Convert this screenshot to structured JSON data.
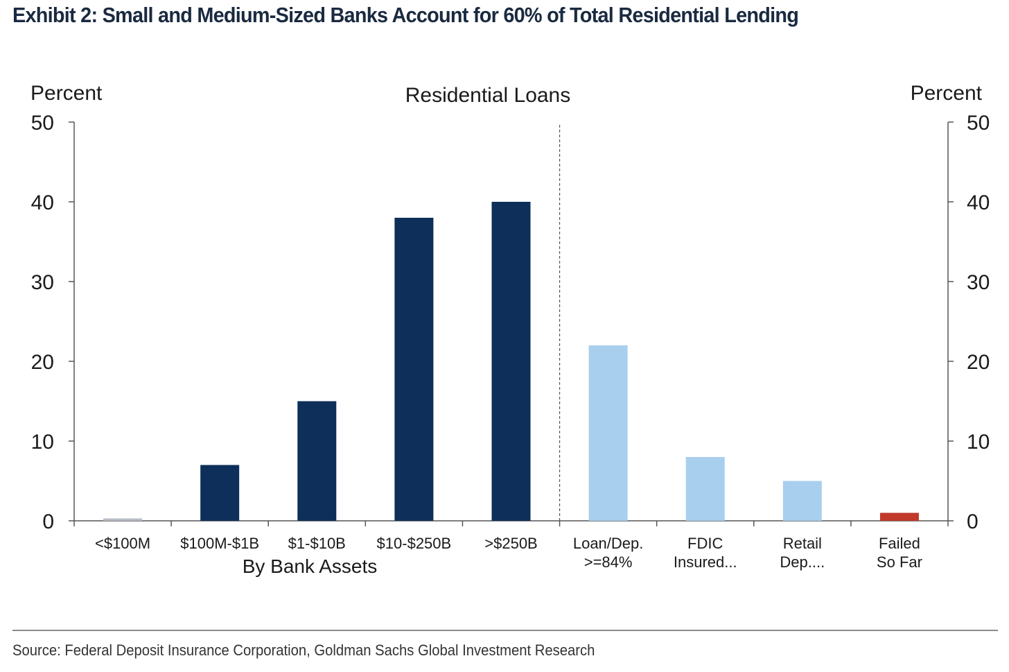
{
  "exhibit_title": "Exhibit 2: Small and Medium-Sized Banks Account for 60% of Total Residential Lending",
  "source": "Source: Federal Deposit Insurance Corporation, Goldman Sachs Global Investment Research",
  "chart_data": {
    "type": "bar",
    "title": "Residential Loans",
    "ylabel_left": "Percent",
    "ylabel_right": "Percent",
    "ylim": [
      0,
      50
    ],
    "yticks": [
      0,
      10,
      20,
      30,
      40,
      50
    ],
    "group_label": "By Bank Assets",
    "grid": false,
    "categories": [
      [
        "<$100M"
      ],
      [
        "$100M-$1B"
      ],
      [
        "$1-$10B"
      ],
      [
        "$10-$250B"
      ],
      [
        ">$250B"
      ],
      [
        "Loan/Dep.",
        ">=84%"
      ],
      [
        "FDIC",
        "Insured..."
      ],
      [
        "Retail",
        "Dep...."
      ],
      [
        "Failed",
        "So Far"
      ]
    ],
    "values": [
      0.3,
      7,
      15,
      38,
      40,
      22,
      8,
      5,
      1
    ],
    "colors": [
      "#0d2f5a",
      "#0d2f5a",
      "#0d2f5a",
      "#0d2f5a",
      "#0d2f5a",
      "#a9cfee",
      "#a9cfee",
      "#a9cfee",
      "#c0392b"
    ],
    "first_bar_color": "#b7bdc6",
    "divider_after_index": 4
  }
}
